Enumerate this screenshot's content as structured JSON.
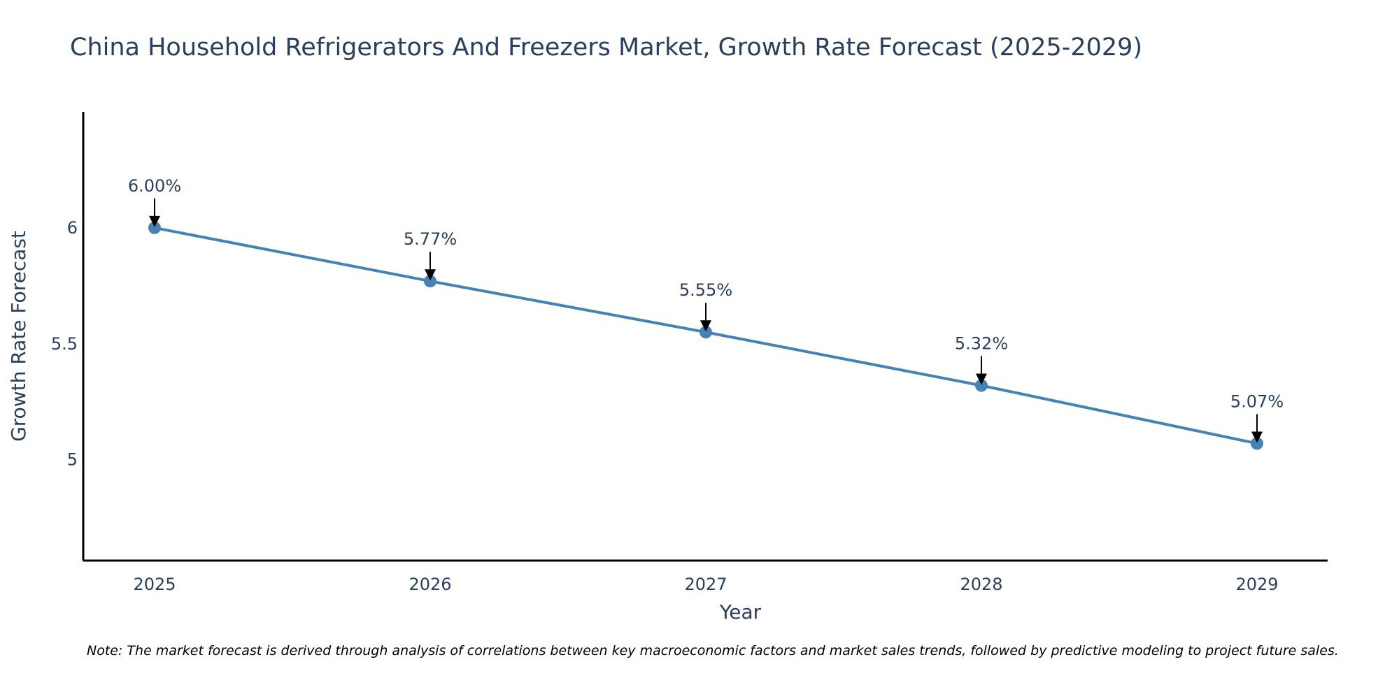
{
  "colors": {
    "line": "#4682b4",
    "marker": "#4682b4",
    "text": "#2a3f5f",
    "axis": "#000000",
    "arrow": "#000000"
  },
  "chart_data": {
    "type": "line",
    "title": "China Household Refrigerators And Freezers Market, Growth Rate Forecast (2025-2029)",
    "xlabel": "Year",
    "ylabel": "Growth Rate Forecast",
    "categories": [
      "2025",
      "2026",
      "2027",
      "2028",
      "2029"
    ],
    "series": [
      {
        "name": "Growth Rate Forecast",
        "values": [
          6.0,
          5.77,
          5.55,
          5.32,
          5.07
        ]
      }
    ],
    "data_labels": [
      "6.00%",
      "5.77%",
      "5.55%",
      "5.32%",
      "5.07%"
    ],
    "yticks": [
      5,
      5.5,
      6
    ],
    "ytick_labels": [
      "5",
      "5.5",
      "6"
    ],
    "ylim": [
      4.565,
      6.5
    ],
    "grid": false,
    "legend": "none"
  },
  "note": "Note: The market forecast is derived through analysis of correlations between key macroeconomic factors and market sales trends, followed by predictive modeling to project future sales."
}
